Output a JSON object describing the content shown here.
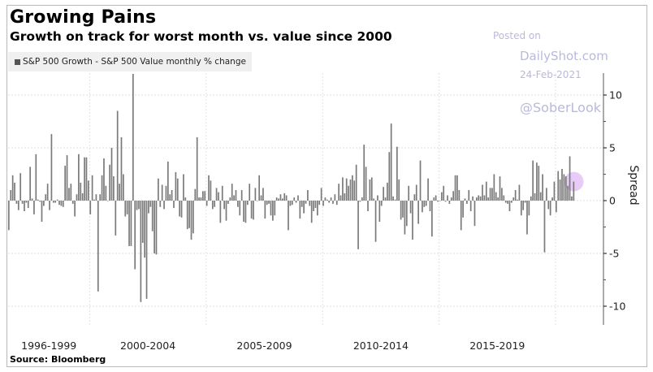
{
  "header": {
    "title": "Growing Pains",
    "subtitle": "Growth on track for worst month vs. value since 2000"
  },
  "legend": {
    "label": "S&P 500 Growth - S&P 500 Value monthly % change",
    "swatch_color": "#555555"
  },
  "watermark": {
    "line1": "Posted on",
    "line2": "DailyShot.com",
    "line3": "24-Feb-2021",
    "line4": "@SoberLook",
    "color": "#b9b9dc"
  },
  "footer": {
    "source": "Source: Bloomberg"
  },
  "highlight": {
    "description": "latest month marker",
    "color": "#e8c8f5"
  },
  "chart_data": {
    "type": "bar",
    "title": "Growing Pains",
    "subtitle": "Growth on track for worst month vs. value since 2000",
    "legend": [
      "S&P 500 Growth - S&P 500 Value monthly % change"
    ],
    "legend_position": "top-left",
    "xlabel": "",
    "ylabel": "Spread",
    "y_axis_side": "right",
    "ylim": [
      -12,
      13
    ],
    "yticks": [
      10,
      5,
      0,
      -5,
      -10
    ],
    "grid": true,
    "x_period_labels": [
      "1996-1999",
      "2000-2004",
      "2005-2009",
      "2010-2014",
      "2015-2019"
    ],
    "x_start": "1996-07",
    "x_end": "2021-02",
    "bar_color": "#7a7a7a",
    "values": [
      -2.8,
      1.0,
      2.4,
      1.7,
      -0.3,
      -0.9,
      2.6,
      -0.3,
      -1.0,
      -0.2,
      -0.7,
      3.2,
      0.2,
      -1.3,
      4.4,
      0.1,
      -0.1,
      -2.0,
      -0.5,
      0.6,
      1.6,
      -0.9,
      6.3,
      -0.2,
      -0.2,
      0.1,
      -0.4,
      -0.5,
      -0.6,
      3.3,
      4.3,
      1.2,
      1.6,
      -0.3,
      -1.5,
      0.6,
      4.4,
      1.7,
      0.7,
      4.1,
      4.1,
      1.9,
      -1.3,
      2.4,
      0.1,
      0.6,
      -8.6,
      0.6,
      2.4,
      4.0,
      1.4,
      0.0,
      3.4,
      5.0,
      2.3,
      -3.3,
      8.5,
      1.6,
      6.0,
      2.5,
      -1.5,
      -1.3,
      -4.3,
      -4.3,
      12.0,
      -6.5,
      -0.9,
      -0.8,
      -9.6,
      -4.0,
      -5.4,
      -9.3,
      -1.2,
      -0.6,
      -2.9,
      -5.0,
      -5.1,
      2.1,
      -0.6,
      1.5,
      -0.8,
      1.4,
      3.7,
      0.6,
      1.0,
      -0.7,
      2.7,
      2.1,
      -1.5,
      -1.6,
      2.5,
      0.3,
      -2.7,
      -2.6,
      -3.7,
      -3.1,
      1.1,
      6.0,
      0.3,
      0.3,
      0.9,
      0.9,
      -0.5,
      2.4,
      1.9,
      -0.8,
      -0.6,
      1.2,
      0.8,
      -2.1,
      1.4,
      -0.8,
      -1.9,
      -0.3,
      0.3,
      1.6,
      0.5,
      1.0,
      -0.6,
      -1.4,
      1.0,
      -2.0,
      -2.1,
      -0.4,
      1.6,
      -1.7,
      -1.8,
      1.2,
      0.0,
      2.4,
      0.5,
      1.2,
      -1.7,
      -0.4,
      -0.3,
      -1.4,
      -1.9,
      -1.4,
      0.3,
      0.2,
      0.6,
      0.2,
      0.7,
      0.5,
      -2.8,
      -0.5,
      -0.4,
      0.3,
      -0.2,
      0.5,
      -1.7,
      -0.6,
      -1.2,
      -0.3,
      1.0,
      -0.5,
      -2.1,
      -1.0,
      -0.7,
      -1.4,
      -0.4,
      1.2,
      -0.5,
      0.3,
      0.1,
      -0.2,
      0.3,
      -0.3,
      0.6,
      -0.4,
      1.6,
      0.5,
      2.2,
      0.7,
      2.1,
      1.4,
      2.0,
      2.4,
      1.9,
      3.4,
      -4.6,
      -0.1,
      0.3,
      5.3,
      3.2,
      -1.0,
      2.0,
      2.2,
      0.2,
      -3.9,
      0.5,
      -2.0,
      -0.5,
      1.3,
      0.3,
      1.7,
      4.6,
      7.3,
      0.4,
      0.1,
      5.1,
      2.0,
      -1.8,
      -1.6,
      -3.2,
      -2.4,
      1.4,
      -1.2,
      -3.7,
      0.6,
      1.5,
      -2.2,
      3.8,
      -1.1,
      -0.6,
      -0.5,
      2.1,
      -1.0,
      -3.4,
      0.3,
      0.5,
      -0.1,
      0.0,
      0.8,
      1.4,
      -0.1,
      0.5,
      -0.3,
      0.3,
      0.9,
      2.4,
      2.4,
      1.0,
      -2.8,
      -1.6,
      0.2,
      -0.3,
      1.0,
      -1.0,
      0.4,
      -2.4,
      0.3,
      0.5,
      0.4,
      1.5,
      0.5,
      1.8,
      0.3,
      1.2,
      1.2,
      2.5,
      0.8,
      0.3,
      2.3,
      1.2,
      0.5,
      -0.2,
      -0.3,
      -1.0,
      -0.2,
      0.3,
      1.0,
      0.1,
      1.5,
      -1.4,
      -0.9,
      -0.2,
      -3.2,
      -1.4,
      0.4,
      3.8,
      0.7,
      3.6,
      3.3,
      0.8,
      2.5,
      -4.9,
      1.2,
      -0.8,
      -1.4,
      0.3,
      1.8,
      -1.1,
      2.8,
      2.0,
      3.0,
      2.5,
      2.3,
      1.4,
      4.2,
      0.4,
      1.8
    ]
  }
}
